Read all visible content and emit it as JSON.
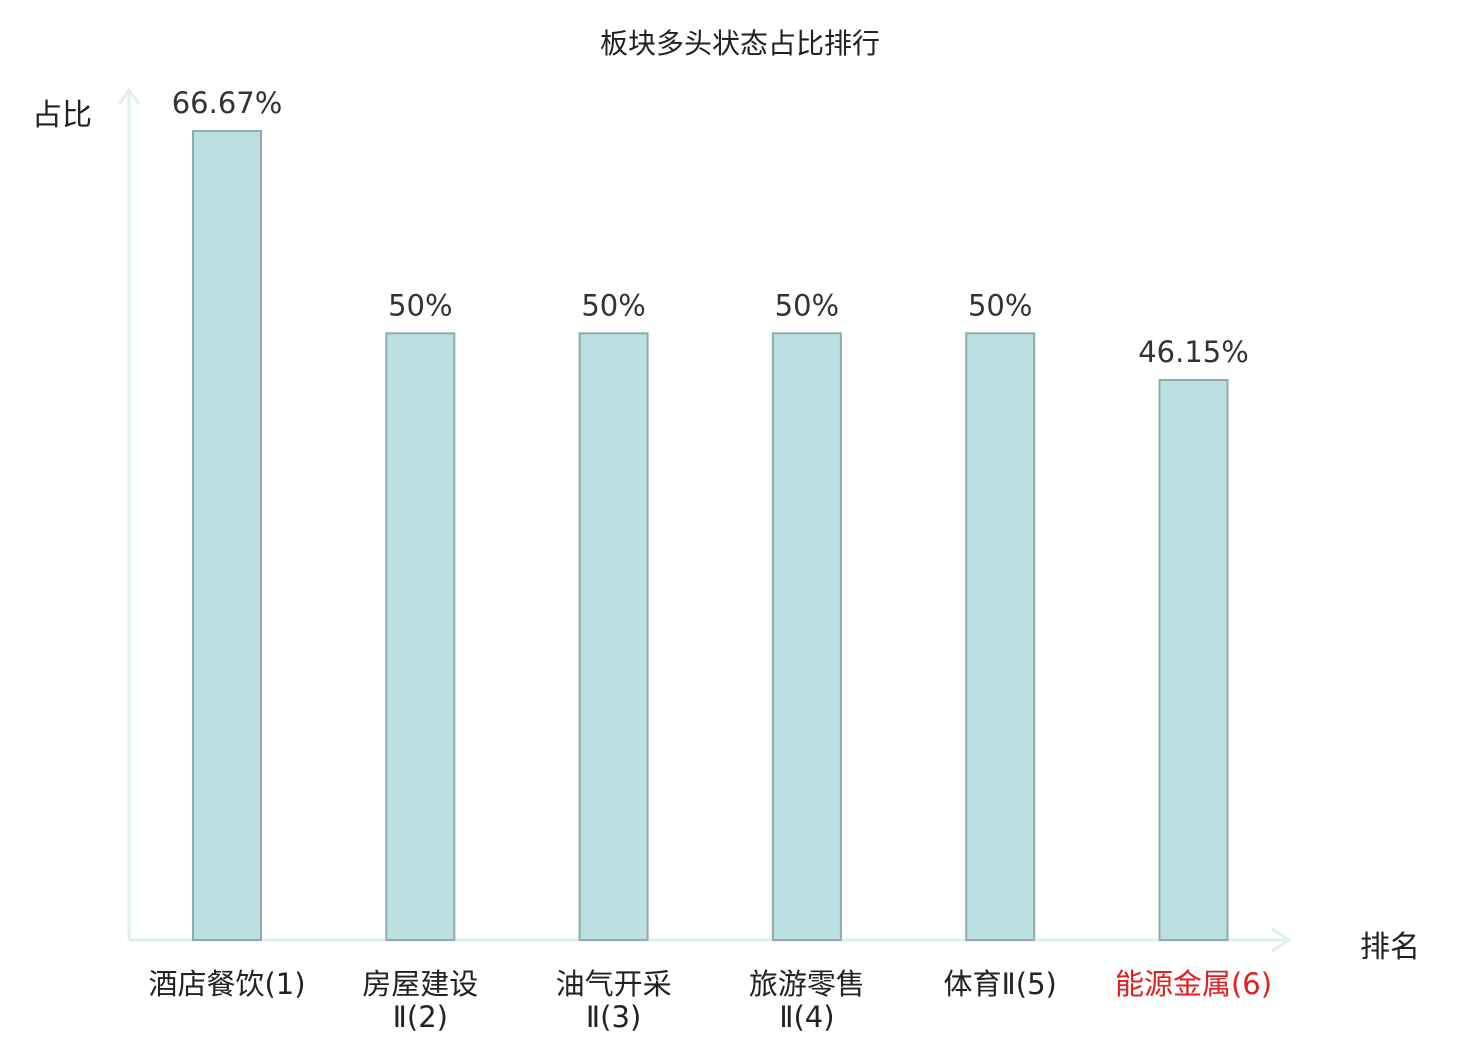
{
  "chart_data": {
    "type": "bar",
    "title": "板块多头状态占比排行",
    "ylabel": "占比",
    "xlabel": "排名",
    "categories": [
      [
        "酒店餐饮(1)"
      ],
      [
        "房屋建设",
        "Ⅱ(2)"
      ],
      [
        "油气开采",
        "Ⅱ(3)"
      ],
      [
        "旅游零售",
        "Ⅱ(4)"
      ],
      [
        "体育Ⅱ(5)"
      ],
      [
        "能源金属(6)"
      ]
    ],
    "values": [
      66.67,
      50,
      50,
      50,
      50,
      46.15
    ],
    "value_labels": [
      "66.67%",
      "50%",
      "50%",
      "50%",
      "50%",
      "46.15%"
    ],
    "highlight_index": 5,
    "ylim": [
      0,
      66.67
    ],
    "grid": false,
    "colors": {
      "bar_fill": "#bce0e2",
      "bar_stroke": "#8fabaf",
      "axis": "#dff0ee",
      "label": "#333333",
      "highlight": "#e02020"
    }
  }
}
